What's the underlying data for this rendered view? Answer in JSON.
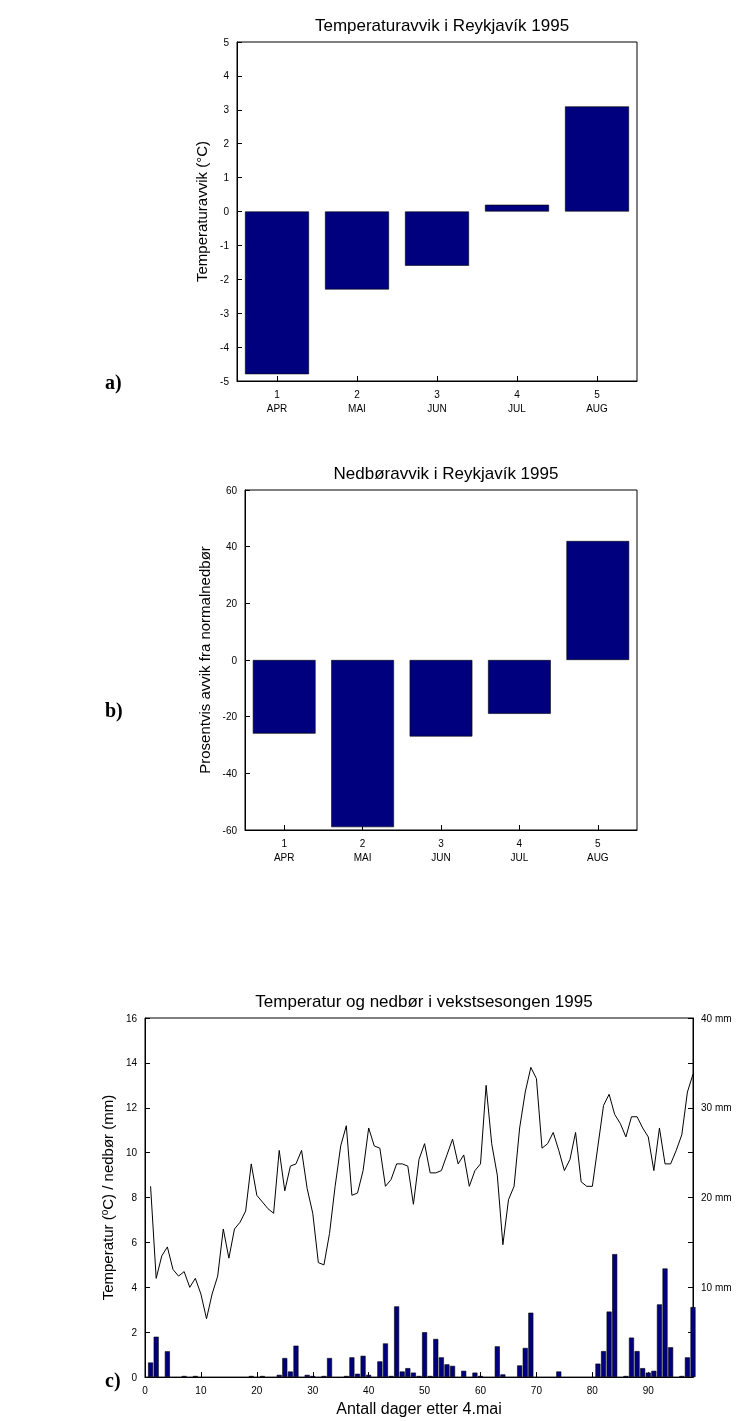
{
  "chart_data": [
    {
      "type": "bar",
      "title": "Temperaturavvik i Reykjavík 1995",
      "ylabel": "Temperaturavvik (°C)",
      "x": [
        1,
        2,
        3,
        4,
        5
      ],
      "values": [
        -4.8,
        -2.3,
        -1.6,
        0.2,
        3.1
      ],
      "color": "#00007f",
      "xlim": [
        0.5,
        5.5
      ],
      "xticks": [
        1,
        2,
        3,
        4,
        5
      ],
      "ylim": [
        -5,
        5
      ],
      "yticks": [
        -5,
        -4,
        -3,
        -2,
        -1,
        0,
        1,
        2,
        3,
        4,
        5
      ],
      "annotations": [
        "APR",
        "MAI",
        "JUN",
        "JUL",
        "AUG",
        "a)"
      ]
    },
    {
      "type": "bar",
      "title": "Nedbøravvik i Reykjavík 1995",
      "ylabel": "Prosentvis avvik fra normalnedbør",
      "x": [
        1,
        2,
        3,
        4,
        5
      ],
      "values": [
        -26,
        -59,
        -27,
        -19,
        42
      ],
      "color": "#00007f",
      "xlim": [
        0.5,
        5.5
      ],
      "xticks": [
        1,
        2,
        3,
        4,
        5
      ],
      "ylim": [
        -60,
        60
      ],
      "yticks": [
        -60,
        -40,
        -20,
        0,
        20,
        40,
        60
      ],
      "annotations": [
        "APR",
        "MAI",
        "JUN",
        "JUL",
        "AUG",
        "b)"
      ]
    },
    {
      "type": "line",
      "title": "Temperatur og nedbør i vekstsesongen 1995",
      "xlabel": "Antall dager etter 4.mai",
      "ylabel": "Temperatur ($^{o}$C) / nedbør (mm)",
      "xlim": [
        0,
        98
      ],
      "xticks": [
        0,
        10,
        20,
        30,
        40,
        50,
        60,
        70,
        80,
        90
      ],
      "ylim": [
        0,
        16
      ],
      "yticks": [
        0,
        2,
        4,
        6,
        8,
        10,
        12,
        14,
        16
      ],
      "y2lim": [
        0,
        40
      ],
      "y2ticks": [
        {
          "value": 5,
          "label": null
        },
        {
          "value": 10,
          "label": "10 mm"
        },
        {
          "value": 15,
          "label": null
        },
        {
          "value": 20,
          "label": "20 mm"
        },
        {
          "value": 25,
          "label": null
        },
        {
          "value": 30,
          "label": "30 mm"
        },
        {
          "value": 35,
          "label": null
        },
        {
          "value": 40,
          "label": "40 mm"
        }
      ],
      "series": [
        {
          "type": "bar",
          "color": "#00007f",
          "x": [
            1,
            2,
            4,
            7,
            9,
            19,
            21,
            24,
            25,
            26,
            27,
            29,
            30,
            32,
            33,
            36,
            37,
            38,
            39,
            40,
            42,
            43,
            44,
            45,
            46,
            47,
            48,
            49,
            50,
            51,
            52,
            53,
            54,
            55,
            57,
            59,
            60,
            63,
            64,
            67,
            68,
            69,
            74,
            81,
            82,
            83,
            84,
            86,
            87,
            88,
            89,
            90,
            91,
            92,
            93,
            94,
            96,
            97,
            98
          ],
          "values": [
            0.65,
            1.8,
            1.15,
            0.05,
            0.05,
            0.05,
            0.05,
            0.1,
            0.85,
            0.25,
            1.4,
            0.1,
            0.05,
            0.05,
            0.85,
            0.05,
            0.88,
            0.15,
            0.95,
            0.1,
            0.7,
            1.5,
            0.05,
            3.15,
            0.25,
            0.4,
            0.2,
            0.05,
            2.0,
            0.05,
            1.7,
            0.88,
            0.57,
            0.5,
            0.28,
            0.2,
            0.05,
            1.37,
            0.12,
            0.52,
            1.3,
            2.87,
            0.25,
            0.6,
            1.16,
            2.92,
            5.48,
            0.05,
            1.76,
            1.16,
            0.4,
            0.2,
            0.28,
            3.24,
            4.84,
            1.33,
            0.05,
            0.88,
            3.12
          ]
        },
        {
          "type": "line",
          "color": "#000000",
          "x": [
            1,
            2,
            3,
            4,
            5,
            6,
            7,
            8,
            9,
            10,
            11,
            12,
            13,
            14,
            15,
            16,
            17,
            18,
            19,
            20,
            21,
            22,
            23,
            24,
            25,
            26,
            27,
            28,
            29,
            30,
            31,
            32,
            33,
            34,
            35,
            36,
            37,
            38,
            39,
            40,
            41,
            42,
            43,
            44,
            45,
            46,
            47,
            48,
            49,
            50,
            51,
            52,
            53,
            54,
            55,
            56,
            57,
            58,
            59,
            60,
            61,
            62,
            63,
            64,
            65,
            66,
            67,
            68,
            69,
            70,
            71,
            72,
            73,
            74,
            75,
            76,
            77,
            78,
            79,
            80,
            81,
            82,
            83,
            84,
            85,
            86,
            87,
            88,
            89,
            90,
            91,
            92,
            93,
            94,
            95,
            96,
            97,
            98
          ],
          "values": [
            8.5,
            4.4,
            5.4,
            5.8,
            4.8,
            4.5,
            4.7,
            4.0,
            4.4,
            3.7,
            2.6,
            3.7,
            4.5,
            6.6,
            5.3,
            6.6,
            6.9,
            7.4,
            9.5,
            8.1,
            7.8,
            7.5,
            7.3,
            10.1,
            8.3,
            9.4,
            9.5,
            10.1,
            8.4,
            7.3,
            5.1,
            5.0,
            6.4,
            8.5,
            10.3,
            11.2,
            8.1,
            8.2,
            9.2,
            11.1,
            10.3,
            10.2,
            8.5,
            8.8,
            9.5,
            9.5,
            9.4,
            7.7,
            9.7,
            10.4,
            9.1,
            9.1,
            9.2,
            9.9,
            10.6,
            9.5,
            9.9,
            8.5,
            9.2,
            9.5,
            13.0,
            10.4,
            9.0,
            5.9,
            7.9,
            8.5,
            11.1,
            12.7,
            13.8,
            13.3,
            10.2,
            10.4,
            10.9,
            10.1,
            9.2,
            9.7,
            10.9,
            8.7,
            8.5,
            8.5,
            10.3,
            12.1,
            12.6,
            11.7,
            11.3,
            10.7,
            11.6,
            11.6,
            11.1,
            10.7,
            9.2,
            11.1,
            9.5,
            9.5,
            10.1,
            10.8,
            12.7,
            13.5
          ]
        }
      ],
      "annotations": [
        "c)"
      ]
    }
  ]
}
